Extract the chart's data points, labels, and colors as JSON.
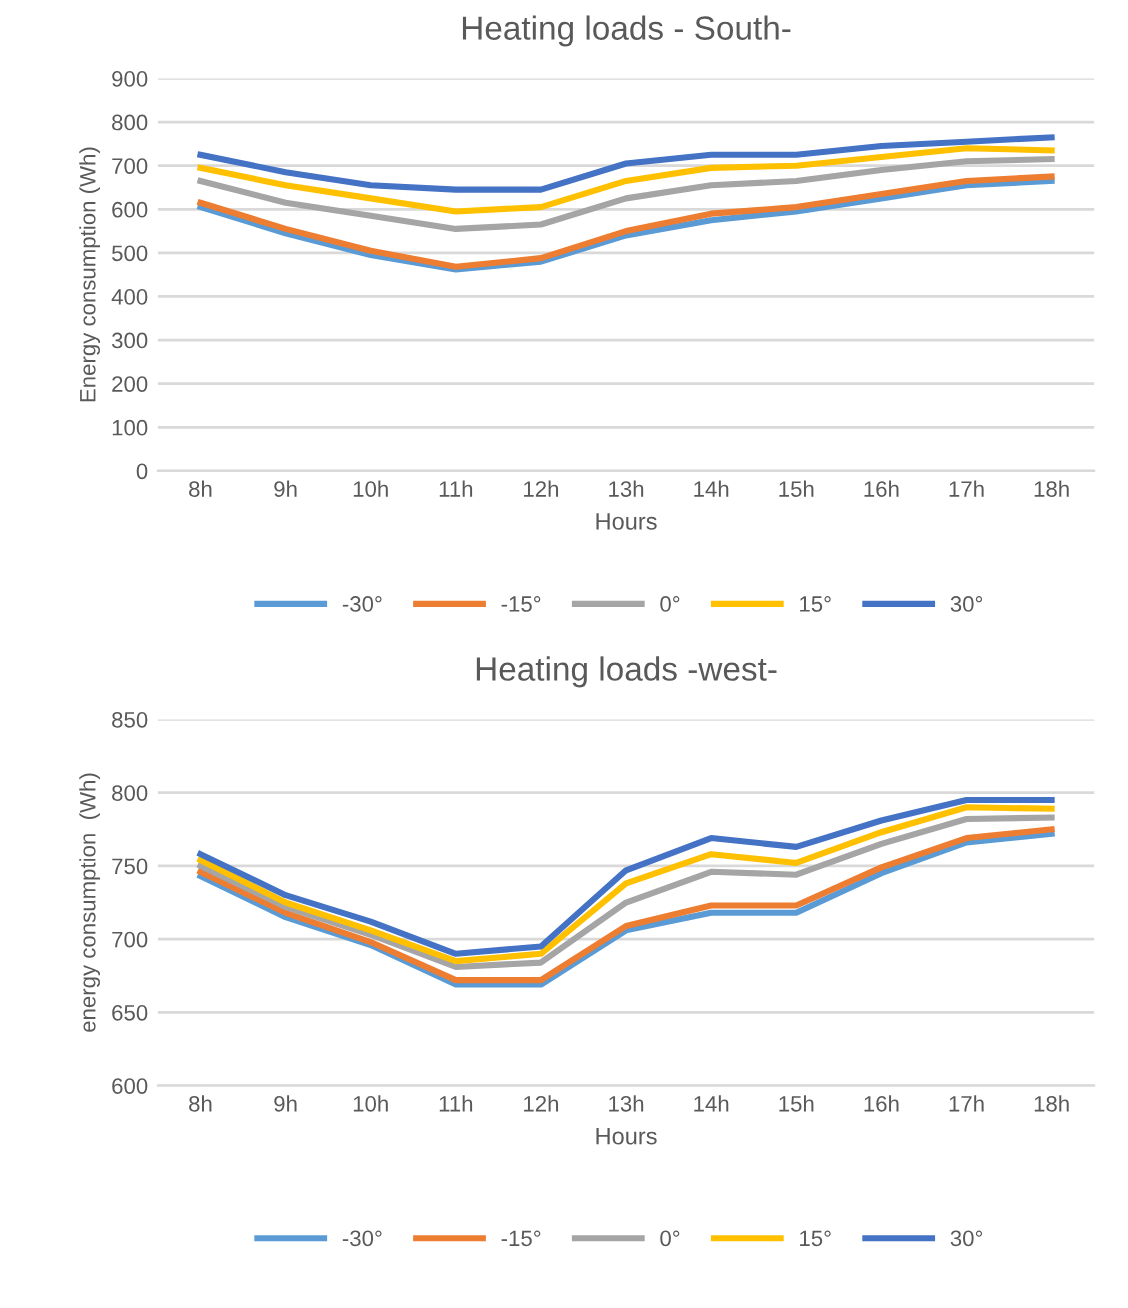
{
  "chart_data": [
    {
      "type": "line",
      "title": "Heating loads - South-",
      "xlabel": "Hours",
      "ylabel": "Energy consumption (Wh)",
      "categories": [
        "8h",
        "9h",
        "10h",
        "11h",
        "12h",
        "13h",
        "14h",
        "15h",
        "16h",
        "17h",
        "18h"
      ],
      "ylim": [
        0,
        900
      ],
      "yticks": [
        0,
        100,
        200,
        300,
        400,
        500,
        600,
        700,
        800,
        900
      ],
      "grid": "y",
      "legend": "bottom",
      "series": [
        {
          "name": "-30°",
          "color": "#5b9bd5",
          "values": [
            605,
            545,
            495,
            462,
            480,
            540,
            575,
            595,
            625,
            655,
            665
          ]
        },
        {
          "name": "-15°",
          "color": "#ed7d31",
          "values": [
            615,
            555,
            505,
            468,
            488,
            550,
            590,
            605,
            635,
            665,
            675
          ]
        },
        {
          "name": "0°",
          "color": "#a5a5a5",
          "values": [
            665,
            615,
            585,
            555,
            565,
            625,
            655,
            665,
            690,
            710,
            715
          ]
        },
        {
          "name": "15°",
          "color": "#ffc000",
          "values": [
            695,
            655,
            625,
            595,
            605,
            665,
            695,
            700,
            720,
            740,
            735
          ]
        },
        {
          "name": "30°",
          "color": "#4472c4",
          "values": [
            725,
            685,
            655,
            645,
            645,
            705,
            725,
            725,
            745,
            755,
            765
          ]
        }
      ]
    },
    {
      "type": "line",
      "title": "Heating loads -west-",
      "xlabel": "Hours",
      "ylabel": "energy consumption  (Wh)",
      "categories": [
        "8h",
        "9h",
        "10h",
        "11h",
        "12h",
        "13h",
        "14h",
        "15h",
        "16h",
        "17h",
        "18h"
      ],
      "ylim": [
        600,
        850
      ],
      "yticks": [
        600,
        650,
        700,
        750,
        800,
        850
      ],
      "grid": "y",
      "legend": "bottom",
      "series": [
        {
          "name": "-30°",
          "color": "#5b9bd5",
          "values": [
            743,
            715,
            696,
            669,
            669,
            706,
            718,
            718,
            745,
            766,
            772
          ]
        },
        {
          "name": "-15°",
          "color": "#ed7d31",
          "values": [
            746,
            718,
            698,
            672,
            672,
            709,
            723,
            723,
            749,
            769,
            775
          ]
        },
        {
          "name": "0°",
          "color": "#a5a5a5",
          "values": [
            750,
            722,
            703,
            681,
            684,
            725,
            746,
            744,
            765,
            782,
            783
          ]
        },
        {
          "name": "15°",
          "color": "#ffc000",
          "values": [
            754,
            725,
            706,
            685,
            690,
            738,
            758,
            752,
            773,
            790,
            789
          ]
        },
        {
          "name": "30°",
          "color": "#4472c4",
          "values": [
            758,
            730,
            712,
            690,
            695,
            747,
            769,
            763,
            781,
            795,
            795
          ]
        }
      ]
    }
  ]
}
